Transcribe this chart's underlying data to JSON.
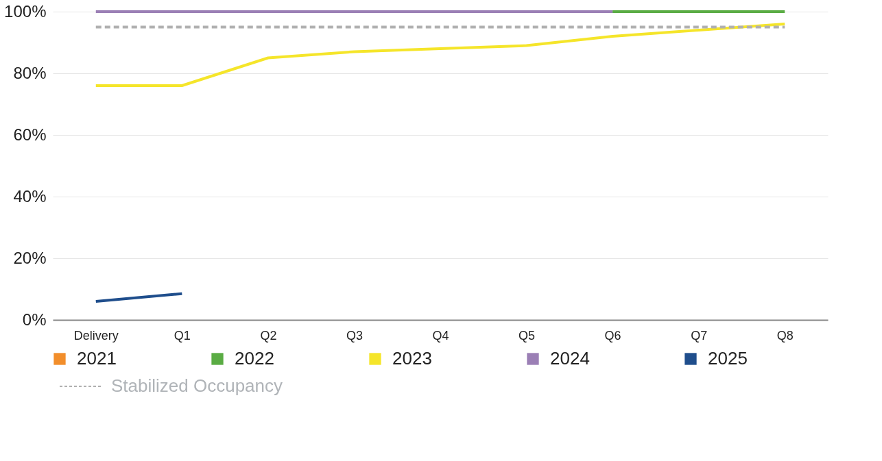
{
  "chart_data": {
    "type": "line",
    "categories": [
      "Delivery",
      "Q1",
      "Q2",
      "Q3",
      "Q4",
      "Q5",
      "Q6",
      "Q7",
      "Q8"
    ],
    "series": [
      {
        "name": "2021",
        "color": "#f28e2b",
        "values": [
          null,
          null,
          null,
          null,
          null,
          null,
          null,
          null,
          null
        ]
      },
      {
        "name": "2022",
        "color": "#5aac44",
        "values": [
          null,
          null,
          null,
          null,
          null,
          null,
          100,
          100,
          100
        ]
      },
      {
        "name": "2023",
        "color": "#f5e52a",
        "values": [
          76,
          76,
          85,
          87,
          88,
          89,
          92,
          94,
          96
        ]
      },
      {
        "name": "2024",
        "color": "#9b7fb5",
        "values": [
          100,
          100,
          100,
          100,
          100,
          100,
          100,
          null,
          null
        ]
      },
      {
        "name": "2025",
        "color": "#1f4e8c",
        "values": [
          6,
          8.5,
          null,
          null,
          null,
          null,
          null,
          null,
          null
        ]
      },
      {
        "name": "Stabilized Occupancy",
        "color": "#b0b0b0",
        "line_style": "dashed",
        "values": [
          95,
          95,
          95,
          95,
          95,
          95,
          95,
          95,
          95
        ]
      }
    ],
    "ylim": [
      0,
      100
    ],
    "yticks": [
      {
        "value": 0,
        "label": "0%"
      },
      {
        "value": 20,
        "label": "20%"
      },
      {
        "value": 40,
        "label": "40%"
      },
      {
        "value": 60,
        "label": "60%"
      },
      {
        "value": 80,
        "label": "80%"
      },
      {
        "value": 100,
        "label": "100%"
      }
    ],
    "grid": "y",
    "legend": "bottom",
    "marker": "none"
  }
}
